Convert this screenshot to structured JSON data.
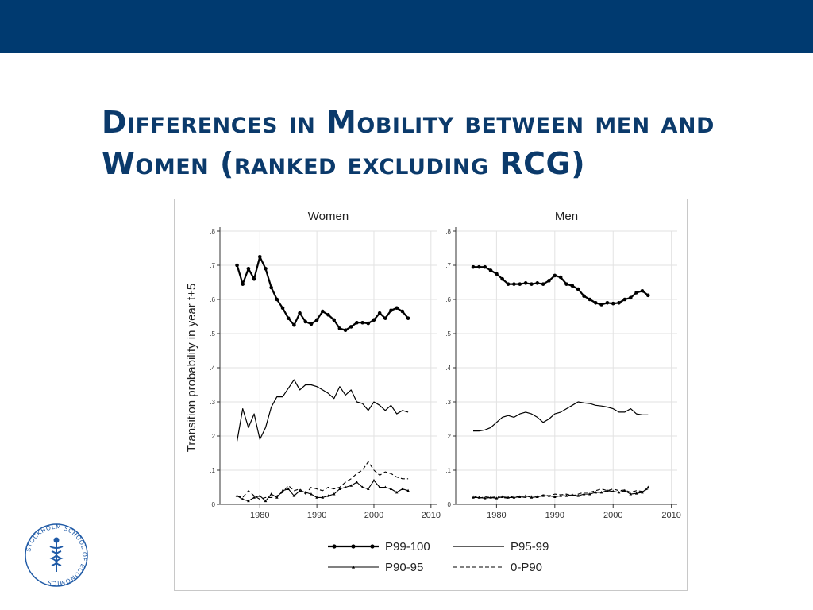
{
  "header": {
    "title": "Differences in Mobility between men and Women (ranked excluding RCG)"
  },
  "logo": {
    "text": "STOCKHOLM SCHOOL OF ECONOMICS",
    "color": "#1f5aa6"
  },
  "colors": {
    "header_bar": "#003a70",
    "title": "#0b3a6b",
    "line": "#000000"
  },
  "chart_data": {
    "type": "line",
    "ylabel": "Transition probability in year t+5",
    "xlim": [
      1973,
      2011
    ],
    "ylim": [
      0,
      0.8
    ],
    "xticks": [
      1980,
      1990,
      2000,
      2010
    ],
    "yticks": [
      0,
      0.1,
      0.2,
      0.3,
      0.4,
      0.5,
      0.6,
      0.7,
      0.8
    ],
    "ytick_labels": [
      "0",
      ".1",
      ".2",
      ".3",
      ".4",
      ".5",
      ".6",
      ".7",
      ".8"
    ],
    "grid": true,
    "legend_position": "bottom",
    "legend": [
      {
        "name": "P99-100",
        "style": "bold-dots"
      },
      {
        "name": "P95-99",
        "style": "solid"
      },
      {
        "name": "P90-95",
        "style": "thin-triangles"
      },
      {
        "name": "0-P90",
        "style": "dashed"
      }
    ],
    "x": [
      1976,
      1977,
      1978,
      1979,
      1980,
      1981,
      1982,
      1983,
      1984,
      1985,
      1986,
      1987,
      1988,
      1989,
      1990,
      1991,
      1992,
      1993,
      1994,
      1995,
      1996,
      1997,
      1998,
      1999,
      2000,
      2001,
      2002,
      2003,
      2004,
      2005,
      2006
    ],
    "panels": [
      {
        "title": "Women",
        "series": [
          {
            "name": "P99-100",
            "values": [
              0.7,
              0.645,
              0.69,
              0.66,
              0.725,
              0.69,
              0.635,
              0.6,
              0.575,
              0.545,
              0.525,
              0.56,
              0.535,
              0.528,
              0.54,
              0.565,
              0.555,
              0.54,
              0.515,
              0.51,
              0.52,
              0.532,
              0.532,
              0.53,
              0.54,
              0.56,
              0.545,
              0.568,
              0.575,
              0.565,
              0.545
            ]
          },
          {
            "name": "P95-99",
            "values": [
              0.185,
              0.28,
              0.225,
              0.265,
              0.19,
              0.225,
              0.285,
              0.315,
              0.315,
              0.34,
              0.365,
              0.335,
              0.35,
              0.35,
              0.345,
              0.335,
              0.325,
              0.31,
              0.345,
              0.32,
              0.335,
              0.3,
              0.295,
              0.275,
              0.3,
              0.29,
              0.275,
              0.29,
              0.265,
              0.275,
              0.27
            ]
          },
          {
            "name": "P90-95",
            "values": [
              0.025,
              0.015,
              0.01,
              0.02,
              0.025,
              0.01,
              0.03,
              0.02,
              0.04,
              0.045,
              0.025,
              0.04,
              0.035,
              0.03,
              0.02,
              0.02,
              0.025,
              0.03,
              0.045,
              0.05,
              0.055,
              0.065,
              0.05,
              0.045,
              0.07,
              0.05,
              0.05,
              0.045,
              0.035,
              0.045,
              0.04
            ]
          },
          {
            "name": "0-P90",
            "values": [
              0.025,
              0.02,
              0.04,
              0.025,
              0.015,
              0.02,
              0.02,
              0.025,
              0.035,
              0.055,
              0.04,
              0.045,
              0.03,
              0.05,
              0.045,
              0.04,
              0.05,
              0.045,
              0.05,
              0.065,
              0.075,
              0.09,
              0.1,
              0.125,
              0.1,
              0.085,
              0.095,
              0.09,
              0.08,
              0.075,
              0.075
            ]
          }
        ]
      },
      {
        "title": "Men",
        "series": [
          {
            "name": "P99-100",
            "values": [
              0.695,
              0.695,
              0.695,
              0.685,
              0.675,
              0.66,
              0.645,
              0.645,
              0.645,
              0.648,
              0.645,
              0.648,
              0.645,
              0.655,
              0.67,
              0.665,
              0.645,
              0.64,
              0.63,
              0.61,
              0.6,
              0.59,
              0.585,
              0.59,
              0.588,
              0.59,
              0.6,
              0.605,
              0.62,
              0.625,
              0.612
            ]
          },
          {
            "name": "P95-99",
            "values": [
              0.215,
              0.215,
              0.218,
              0.225,
              0.24,
              0.255,
              0.26,
              0.255,
              0.265,
              0.27,
              0.265,
              0.255,
              0.24,
              0.25,
              0.265,
              0.27,
              0.28,
              0.29,
              0.3,
              0.297,
              0.295,
              0.29,
              0.288,
              0.285,
              0.28,
              0.27,
              0.27,
              0.28,
              0.265,
              0.262,
              0.262
            ]
          },
          {
            "name": "P90-95",
            "values": [
              0.02,
              0.02,
              0.018,
              0.02,
              0.018,
              0.022,
              0.02,
              0.02,
              0.022,
              0.025,
              0.02,
              0.022,
              0.025,
              0.025,
              0.022,
              0.025,
              0.025,
              0.028,
              0.025,
              0.03,
              0.03,
              0.035,
              0.035,
              0.04,
              0.038,
              0.035,
              0.04,
              0.03,
              0.032,
              0.035,
              0.05
            ]
          },
          {
            "name": "0-P90",
            "values": [
              0.025,
              0.018,
              0.022,
              0.02,
              0.022,
              0.02,
              0.018,
              0.025,
              0.022,
              0.02,
              0.025,
              0.02,
              0.028,
              0.025,
              0.03,
              0.028,
              0.03,
              0.025,
              0.03,
              0.035,
              0.035,
              0.04,
              0.045,
              0.04,
              0.045,
              0.04,
              0.042,
              0.035,
              0.04,
              0.038,
              0.045
            ]
          }
        ]
      }
    ]
  }
}
